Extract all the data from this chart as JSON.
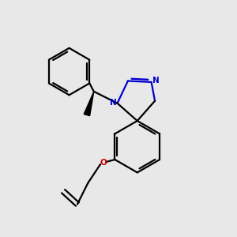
{
  "background_color": "#e8e8e8",
  "bond_color": "#000000",
  "N_color": "#0000cd",
  "O_color": "#cc0000",
  "line_width": 1.6,
  "figsize": [
    3.0,
    3.0
  ],
  "dpi": 100,
  "xlim": [
    0,
    10
  ],
  "ylim": [
    0,
    10
  ]
}
